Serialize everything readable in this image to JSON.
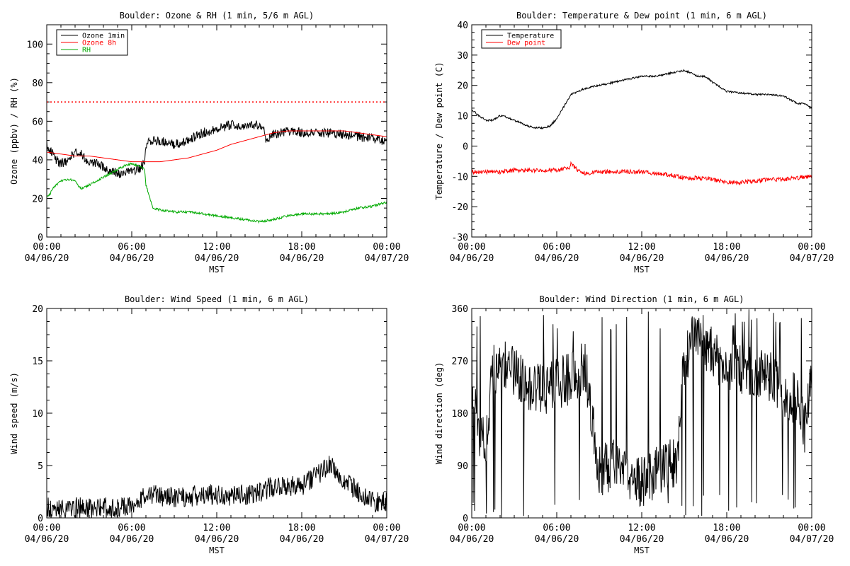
{
  "colors": {
    "background": "#ffffff",
    "axis": "#000000",
    "black": "#000000",
    "red": "#ff0000",
    "green": "#00aa00"
  },
  "chart_data": [
    {
      "id": "ozone",
      "type": "line",
      "title": "Boulder: Ozone & RH (1 min, 5/6 m AGL)",
      "xlabel": "MST",
      "ylabel": "Ozone (ppbv) / RH (%)",
      "xlim": [
        0,
        24
      ],
      "ylim": [
        0,
        110
      ],
      "yticks": [
        0,
        20,
        40,
        60,
        80,
        100
      ],
      "xtick_labels": [
        {
          "x": 0,
          "time": "00:00",
          "date": "04/06/20"
        },
        {
          "x": 6,
          "time": "06:00",
          "date": "04/06/20"
        },
        {
          "x": 12,
          "time": "12:00",
          "date": "04/06/20"
        },
        {
          "x": 18,
          "time": "18:00",
          "date": "04/06/20"
        },
        {
          "x": 24,
          "time": "00:00",
          "date": "04/07/20"
        }
      ],
      "legend": {
        "position": "top-left",
        "entries": [
          {
            "label": "Ozone 1min",
            "color": "#000000"
          },
          {
            "label": "Ozone 8h",
            "color": "#ff0000"
          },
          {
            "label": "RH",
            "color": "#00aa00"
          }
        ]
      },
      "reference_lines": [
        {
          "y": 70,
          "color": "#ff0000",
          "style": "dotted"
        }
      ],
      "series": [
        {
          "name": "Ozone 1min",
          "color": "#000000",
          "noise": 2.5,
          "x": [
            0,
            0.3,
            0.6,
            1,
            1.5,
            2,
            2.5,
            3,
            3.5,
            4,
            4.5,
            5,
            5.5,
            6,
            6.5,
            6.9,
            7,
            7.5,
            8,
            9,
            10,
            11,
            12,
            13,
            14,
            15,
            15.4,
            15.5,
            16,
            17,
            18,
            19,
            20,
            21,
            22,
            23,
            24
          ],
          "y": [
            48,
            45,
            40,
            38,
            40,
            44,
            43,
            38,
            38,
            36,
            34,
            33,
            33,
            34,
            35,
            38,
            48,
            50,
            50,
            48,
            50,
            54,
            56,
            58,
            58,
            58,
            54,
            50,
            53,
            55,
            54,
            54,
            54,
            53,
            52,
            51,
            49
          ]
        },
        {
          "name": "Ozone 8h",
          "color": "#ff0000",
          "noise": 0,
          "x": [
            0,
            1,
            2,
            3,
            4,
            5,
            6,
            7,
            8,
            9,
            10,
            11,
            12,
            13,
            14,
            15,
            16,
            17,
            18,
            19,
            20,
            21,
            22,
            23,
            24
          ],
          "y": [
            44,
            43,
            42,
            42,
            41,
            40,
            39,
            39,
            39,
            40,
            41,
            43,
            45,
            48,
            50,
            52,
            54,
            55,
            55,
            55,
            55,
            55,
            54,
            53,
            52
          ]
        },
        {
          "name": "RH",
          "color": "#00aa00",
          "noise": 0.6,
          "x": [
            0,
            0.2,
            0.5,
            1,
            1.5,
            2,
            2.3,
            2.5,
            3,
            3.5,
            4,
            4.5,
            5,
            5.5,
            6,
            6.5,
            6.9,
            7,
            7.5,
            8,
            9,
            10,
            11,
            12,
            13,
            14,
            15,
            16,
            17,
            18,
            19,
            20,
            21,
            21.5,
            22,
            23,
            24
          ],
          "y": [
            21,
            22,
            26,
            29,
            30,
            29,
            26,
            25,
            27,
            29,
            31,
            33,
            35,
            37,
            38,
            37,
            35,
            27,
            15,
            14,
            13,
            13,
            12,
            11,
            10,
            9,
            8,
            9,
            11,
            12,
            12,
            12,
            13,
            14,
            15,
            16,
            18
          ]
        }
      ]
    },
    {
      "id": "temp",
      "type": "line",
      "title": "Boulder: Temperature & Dew point (1 min, 6 m AGL)",
      "xlabel": "MST",
      "ylabel": "Temperature / Dew point (C)",
      "xlim": [
        0,
        24
      ],
      "ylim": [
        -30,
        40
      ],
      "yticks": [
        -30,
        -20,
        -10,
        0,
        10,
        20,
        30,
        40
      ],
      "xtick_labels": [
        {
          "x": 0,
          "time": "00:00",
          "date": "04/06/20"
        },
        {
          "x": 6,
          "time": "06:00",
          "date": "04/06/20"
        },
        {
          "x": 12,
          "time": "12:00",
          "date": "04/06/20"
        },
        {
          "x": 18,
          "time": "18:00",
          "date": "04/06/20"
        },
        {
          "x": 24,
          "time": "00:00",
          "date": "04/07/20"
        }
      ],
      "legend": {
        "position": "top-left",
        "entries": [
          {
            "label": "Temperature",
            "color": "#000000"
          },
          {
            "label": "Dew point",
            "color": "#ff0000"
          }
        ]
      },
      "reference_lines": [],
      "series": [
        {
          "name": "Temperature",
          "color": "#000000",
          "noise": 0.3,
          "x": [
            0,
            0.5,
            1,
            1.5,
            2,
            2.5,
            3,
            3.5,
            4,
            4.5,
            5,
            5.5,
            6,
            6.5,
            7,
            7.5,
            8,
            9,
            10,
            11,
            12,
            13,
            14,
            15,
            16,
            16.5,
            17,
            18,
            19,
            20,
            21,
            22,
            23,
            23.5,
            24
          ],
          "y": [
            12,
            10,
            8.5,
            8.5,
            10,
            9.5,
            8.5,
            7.5,
            6.5,
            6,
            6,
            6.5,
            9,
            13,
            17,
            18,
            19,
            20,
            21,
            22,
            23,
            23,
            24,
            25,
            23,
            23,
            21,
            18,
            17.5,
            17,
            17,
            16.5,
            14,
            14,
            12.5
          ]
        },
        {
          "name": "Dew point",
          "color": "#ff0000",
          "noise": 0.7,
          "x": [
            0,
            1,
            2,
            3,
            4,
            5,
            6,
            6.9,
            7,
            7.5,
            8,
            9,
            10,
            11,
            12,
            13,
            14,
            15,
            16,
            17,
            18,
            19,
            20,
            21,
            22,
            23,
            24
          ],
          "y": [
            -8.5,
            -8.5,
            -8.5,
            -8,
            -8,
            -8,
            -8,
            -7,
            -6,
            -8,
            -9,
            -8.5,
            -8.5,
            -8.5,
            -8.5,
            -9,
            -9.5,
            -10.5,
            -10.5,
            -11,
            -12,
            -12,
            -11.5,
            -11,
            -11,
            -10.5,
            -10
          ]
        }
      ]
    },
    {
      "id": "wspd",
      "type": "line",
      "title": "Boulder: Wind Speed (1 min, 6 m AGL)",
      "xlabel": "MST",
      "ylabel": "Wind speed (m/s)",
      "xlim": [
        0,
        24
      ],
      "ylim": [
        0,
        20
      ],
      "yticks": [
        0,
        5,
        10,
        15,
        20
      ],
      "xtick_labels": [
        {
          "x": 0,
          "time": "00:00",
          "date": "04/06/20"
        },
        {
          "x": 6,
          "time": "06:00",
          "date": "04/06/20"
        },
        {
          "x": 12,
          "time": "12:00",
          "date": "04/06/20"
        },
        {
          "x": 18,
          "time": "18:00",
          "date": "04/06/20"
        },
        {
          "x": 24,
          "time": "00:00",
          "date": "04/07/20"
        }
      ],
      "legend": null,
      "reference_lines": [],
      "series": [
        {
          "name": "",
          "color": "#000000",
          "noise": 1.0,
          "clip_min": 0,
          "x": [
            0,
            1,
            2,
            3,
            4,
            5,
            6,
            6.5,
            7,
            8,
            9,
            10,
            11,
            12,
            13,
            14,
            15,
            16,
            17,
            18,
            19,
            19.5,
            20,
            21,
            22,
            23,
            24
          ],
          "y": [
            1,
            0.8,
            1,
            0.9,
            1,
            0.9,
            1,
            1.3,
            2.5,
            2,
            2,
            2,
            2.3,
            2.2,
            2,
            2.2,
            2.5,
            3,
            3,
            3,
            4,
            4.5,
            5,
            3.5,
            2.5,
            1.5,
            1.5
          ]
        }
      ]
    },
    {
      "id": "wdir",
      "type": "line",
      "title": "Boulder: Wind Direction (1 min, 6 m AGL)",
      "xlabel": "MST",
      "ylabel": "Wind direction (deg)",
      "xlim": [
        0,
        24
      ],
      "ylim": [
        0,
        360
      ],
      "yticks": [
        0,
        90,
        180,
        270,
        360
      ],
      "xtick_labels": [
        {
          "x": 0,
          "time": "00:00",
          "date": "04/06/20"
        },
        {
          "x": 6,
          "time": "06:00",
          "date": "04/06/20"
        },
        {
          "x": 12,
          "time": "12:00",
          "date": "04/06/20"
        },
        {
          "x": 18,
          "time": "18:00",
          "date": "04/06/20"
        },
        {
          "x": 24,
          "time": "00:00",
          "date": "04/07/20"
        }
      ],
      "legend": null,
      "reference_lines": [],
      "series": [
        {
          "name": "",
          "color": "#000000",
          "noise": 45,
          "spikes": 0.06,
          "clip_min": 0,
          "clip_max": 360,
          "x": [
            0,
            0.5,
            1,
            1.5,
            2,
            3,
            4,
            5,
            6,
            7,
            8,
            9,
            10,
            11,
            12,
            13,
            14,
            14.5,
            15,
            15.5,
            16,
            17,
            18,
            19,
            20,
            21,
            22,
            22.5,
            23,
            23.5,
            24
          ],
          "y": [
            230,
            150,
            130,
            250,
            270,
            250,
            230,
            220,
            230,
            240,
            260,
            80,
            90,
            70,
            60,
            80,
            90,
            100,
            270,
            300,
            320,
            280,
            260,
            255,
            250,
            245,
            220,
            210,
            200,
            150,
            250
          ]
        }
      ]
    }
  ]
}
